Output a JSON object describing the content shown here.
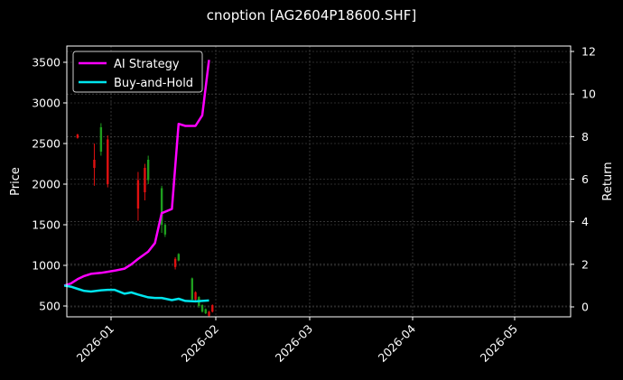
{
  "chart_data": {
    "type": "line",
    "title": "cnoption [AG2604P18600.SHF]",
    "xlabel": "",
    "ylabel": "Price",
    "ylabel_right": "Return",
    "ylim": [
      350,
      3680
    ],
    "ylim_right": [
      -0.5,
      12.3
    ],
    "yticks": [
      500,
      1000,
      1500,
      2000,
      2500,
      3000,
      3500
    ],
    "yticks_right": [
      0,
      2,
      4,
      6,
      8,
      10,
      12
    ],
    "xticks": [
      "2026-01",
      "2026-02",
      "2026-03",
      "2026-04",
      "2026-05"
    ],
    "grid": true,
    "legend_position": "upper left",
    "legend": [
      "AI Strategy",
      "Buy-and-Hold"
    ],
    "series": [
      {
        "name": "AI Strategy",
        "axis": "right",
        "color": "#ff00ff",
        "x": [
          "2025-12-18",
          "2025-12-20",
          "2025-12-22",
          "2025-12-24",
          "2025-12-26",
          "2025-12-29",
          "2025-12-31",
          "2026-01-02",
          "2026-01-05",
          "2026-01-07",
          "2026-01-09",
          "2026-01-12",
          "2026-01-14",
          "2026-01-16",
          "2026-01-19",
          "2026-01-21",
          "2026-01-23",
          "2026-01-26",
          "2026-01-28",
          "2026-01-30"
        ],
        "values": [
          1.0,
          1.1,
          1.3,
          1.45,
          1.55,
          1.6,
          1.65,
          1.7,
          1.8,
          2.0,
          2.25,
          2.6,
          3.0,
          4.4,
          4.6,
          8.6,
          8.5,
          8.5,
          9.0,
          11.6
        ]
      },
      {
        "name": "Buy-and-Hold",
        "axis": "right",
        "color": "#00e5ee",
        "x": [
          "2025-12-18",
          "2025-12-20",
          "2025-12-22",
          "2025-12-24",
          "2025-12-26",
          "2025-12-29",
          "2025-12-31",
          "2026-01-02",
          "2026-01-05",
          "2026-01-07",
          "2026-01-09",
          "2026-01-12",
          "2026-01-14",
          "2026-01-16",
          "2026-01-19",
          "2026-01-21",
          "2026-01-23",
          "2026-01-26",
          "2026-01-28",
          "2026-01-30"
        ],
        "values": [
          1.0,
          0.95,
          0.85,
          0.75,
          0.72,
          0.78,
          0.8,
          0.8,
          0.62,
          0.68,
          0.58,
          0.45,
          0.42,
          0.42,
          0.32,
          0.38,
          0.28,
          0.26,
          0.28,
          0.3
        ]
      }
    ],
    "candles": {
      "axis": "left",
      "up_color": "#1e9e1e",
      "down_color": "#e01010",
      "items": [
        {
          "x": "2025-12-22",
          "dir": "down",
          "high": 2620,
          "low": 2560,
          "open": 2610,
          "close": 2570
        },
        {
          "x": "2025-12-27",
          "dir": "down",
          "high": 2500,
          "low": 1980,
          "open": 2300,
          "close": 2200
        },
        {
          "x": "2025-12-29",
          "dir": "up",
          "high": 2750,
          "low": 2350,
          "open": 2400,
          "close": 2700
        },
        {
          "x": "2025-12-31",
          "dir": "down",
          "high": 2600,
          "low": 1960,
          "open": 2550,
          "close": 2000
        },
        {
          "x": "2026-01-09",
          "dir": "down",
          "high": 2150,
          "low": 1550,
          "open": 2050,
          "close": 1700
        },
        {
          "x": "2026-01-11",
          "dir": "down",
          "high": 2250,
          "low": 1800,
          "open": 2200,
          "close": 1900
        },
        {
          "x": "2026-01-12",
          "dir": "up",
          "high": 2350,
          "low": 2000,
          "open": 2050,
          "close": 2300
        },
        {
          "x": "2026-01-16",
          "dir": "up",
          "high": 1980,
          "low": 1400,
          "open": 1500,
          "close": 1950
        },
        {
          "x": "2026-01-17",
          "dir": "up",
          "high": 1520,
          "low": 1350,
          "open": 1380,
          "close": 1500
        },
        {
          "x": "2026-01-20",
          "dir": "down",
          "high": 1100,
          "low": 950,
          "open": 1080,
          "close": 980
        },
        {
          "x": "2026-01-21",
          "dir": "up",
          "high": 1150,
          "low": 1050,
          "open": 1060,
          "close": 1140
        },
        {
          "x": "2026-01-25",
          "dir": "up",
          "high": 850,
          "low": 550,
          "open": 580,
          "close": 840
        },
        {
          "x": "2026-01-26",
          "dir": "down",
          "high": 680,
          "low": 560,
          "open": 670,
          "close": 580
        },
        {
          "x": "2026-01-27",
          "dir": "up",
          "high": 620,
          "low": 480,
          "open": 500,
          "close": 610
        },
        {
          "x": "2026-01-28",
          "dir": "up",
          "high": 520,
          "low": 420,
          "open": 430,
          "close": 510
        },
        {
          "x": "2026-01-29",
          "dir": "up",
          "high": 470,
          "low": 400,
          "open": 410,
          "close": 460
        },
        {
          "x": "2026-01-30",
          "dir": "down",
          "high": 440,
          "low": 370,
          "open": 430,
          "close": 380
        },
        {
          "x": "2026-01-31",
          "dir": "down",
          "high": 520,
          "low": 420,
          "open": 510,
          "close": 430
        }
      ]
    }
  }
}
